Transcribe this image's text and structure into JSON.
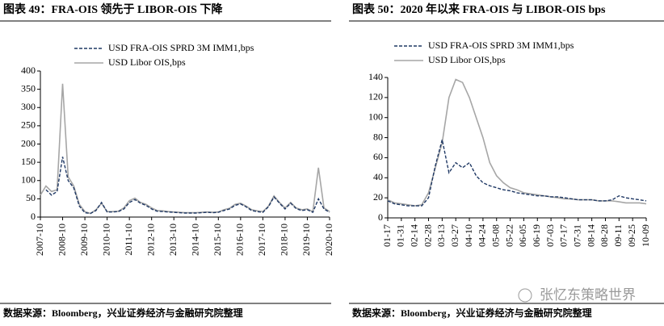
{
  "chart_data": [
    {
      "type": "line",
      "title": "图表 49：FRA-OIS 领先于 LIBOR-OIS 下降",
      "source": "数据来源：Bloomberg，兴业证券经济与金融研究院整理",
      "categories": [
        "2007-10",
        null,
        null,
        null,
        "2008-10",
        null,
        null,
        null,
        "2009-10",
        null,
        null,
        null,
        "2010-10",
        null,
        null,
        null,
        "2011-10",
        null,
        null,
        null,
        "2012-10",
        null,
        null,
        null,
        "2013-10",
        null,
        null,
        null,
        "2014-10",
        null,
        null,
        null,
        "2015-10",
        null,
        null,
        null,
        "2016-10",
        null,
        null,
        null,
        "2017-10",
        null,
        null,
        null,
        "2018-10",
        null,
        null,
        null,
        "2019-10",
        null,
        null,
        null,
        "2020-10"
      ],
      "series": [
        {
          "name": "USD FRA-OIS SPRD 3M IMM1,bps",
          "color": "#1f3864",
          "dash": true,
          "values": [
            null,
            75,
            60,
            70,
            165,
            100,
            80,
            30,
            12,
            10,
            18,
            40,
            14,
            14,
            15,
            22,
            40,
            48,
            38,
            32,
            22,
            16,
            15,
            14,
            13,
            12,
            11,
            11,
            11,
            12,
            13,
            12,
            13,
            18,
            22,
            32,
            36,
            28,
            18,
            15,
            13,
            28,
            55,
            38,
            22,
            38,
            23,
            18,
            20,
            13,
            50,
            22,
            13
          ]
        },
        {
          "name": "USD Libor OIS,bps",
          "color": "#a6a6a6",
          "dash": false,
          "values": [
            60,
            85,
            70,
            75,
            365,
            110,
            85,
            35,
            15,
            10,
            20,
            38,
            15,
            15,
            16,
            25,
            45,
            52,
            40,
            35,
            25,
            18,
            17,
            15,
            14,
            13,
            12,
            12,
            12,
            13,
            14,
            13,
            14,
            20,
            24,
            35,
            38,
            30,
            20,
            17,
            15,
            30,
            58,
            40,
            25,
            40,
            25,
            20,
            22,
            15,
            135,
            25,
            15
          ]
        }
      ],
      "ylim": [
        0,
        400
      ],
      "yticks": [
        0,
        50,
        100,
        150,
        200,
        250,
        300,
        350,
        400
      ],
      "grid": false
    },
    {
      "type": "line",
      "title": "图表 50：2020 年以来 FRA-OIS 与 LIBOR-OIS bps",
      "source": "数据来源：Bloomberg，兴业证券经济与金融研究院整理",
      "categories": [
        "01-17",
        null,
        "01-31",
        null,
        "02-14",
        null,
        "02-28",
        null,
        "03-13",
        null,
        "03-27",
        null,
        "04-10",
        null,
        "04-24",
        null,
        "05-08",
        null,
        "05-22",
        null,
        "06-05",
        null,
        "06-19",
        null,
        "07-03",
        null,
        "07-17",
        null,
        "07-31",
        null,
        "08-14",
        null,
        "08-28",
        null,
        "09-11",
        null,
        "09-25",
        null,
        "10-09"
      ],
      "series": [
        {
          "name": "USD FRA-OIS SPRD 3M IMM1,bps",
          "color": "#1f3864",
          "dash": true,
          "values": [
            17,
            14,
            13,
            12,
            12,
            12,
            20,
            52,
            78,
            45,
            55,
            50,
            55,
            42,
            35,
            32,
            30,
            28,
            27,
            25,
            24,
            23,
            22,
            22,
            21,
            21,
            20,
            19,
            18,
            18,
            18,
            17,
            17,
            18,
            22,
            20,
            19,
            18,
            17
          ]
        },
        {
          "name": "USD Libor OIS,bps",
          "color": "#a6a6a6",
          "dash": false,
          "values": [
            18,
            15,
            14,
            13,
            12,
            13,
            25,
            50,
            75,
            120,
            138,
            135,
            120,
            100,
            80,
            55,
            42,
            35,
            30,
            28,
            25,
            24,
            23,
            22,
            21,
            20,
            19,
            19,
            18,
            18,
            18,
            17,
            17,
            17,
            16,
            15,
            15,
            15,
            14
          ]
        }
      ],
      "ylim": [
        0,
        140
      ],
      "yticks": [
        0,
        20,
        40,
        60,
        80,
        100,
        120,
        140
      ],
      "grid": false
    }
  ],
  "watermark": "张忆东策略世界"
}
